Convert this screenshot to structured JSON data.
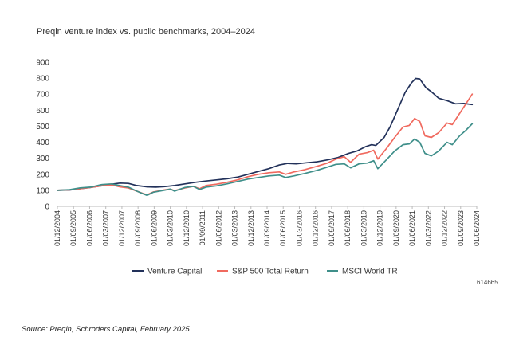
{
  "chart_data": {
    "type": "line",
    "title": "Preqin venture index vs. public benchmarks, 2004–2024",
    "xlabel": "",
    "ylabel": "",
    "ylim": [
      0,
      900
    ],
    "yticks": [
      0,
      100,
      200,
      300,
      400,
      500,
      600,
      700,
      800,
      900
    ],
    "grid": false,
    "legend_position": "bottom",
    "x_tick_labels": [
      "01/12/2004",
      "01/09/2005",
      "01/06/2006",
      "01/03/2007",
      "01/12/2007",
      "01/09/2008",
      "01/06/2009",
      "01/03/2010",
      "01/12/2010",
      "01/09/2011",
      "01/06/2012",
      "01/03/2013",
      "01/12/2013",
      "01/09/2014",
      "01/06/2015",
      "01/03/2016",
      "01/12/2016",
      "01/09/2017",
      "01/06/2018",
      "01/03/2019",
      "01/12/2019",
      "01/09/2020",
      "01/06/2021",
      "01/03/2022",
      "01/12/2022",
      "01/09/2023",
      "01/06/2024"
    ],
    "x_range": [
      2004.917,
      2024.917
    ],
    "series": [
      {
        "name": "Venture Capital",
        "color": "#22315a",
        "points": [
          [
            2004.92,
            100
          ],
          [
            2005.5,
            102
          ],
          [
            2006,
            110
          ],
          [
            2006.5,
            118
          ],
          [
            2007,
            128
          ],
          [
            2007.5,
            138
          ],
          [
            2007.9,
            145
          ],
          [
            2008.3,
            143
          ],
          [
            2008.7,
            130
          ],
          [
            2009.2,
            122
          ],
          [
            2009.6,
            120
          ],
          [
            2010,
            123
          ],
          [
            2010.5,
            130
          ],
          [
            2011,
            140
          ],
          [
            2011.5,
            150
          ],
          [
            2012,
            158
          ],
          [
            2012.5,
            165
          ],
          [
            2013,
            172
          ],
          [
            2013.5,
            182
          ],
          [
            2014,
            200
          ],
          [
            2014.5,
            218
          ],
          [
            2015,
            235
          ],
          [
            2015.5,
            258
          ],
          [
            2015.9,
            268
          ],
          [
            2016.3,
            265
          ],
          [
            2016.8,
            272
          ],
          [
            2017.3,
            278
          ],
          [
            2017.8,
            290
          ],
          [
            2018.3,
            305
          ],
          [
            2018.8,
            330
          ],
          [
            2019.2,
            345
          ],
          [
            2019.6,
            372
          ],
          [
            2019.9,
            385
          ],
          [
            2020.1,
            380
          ],
          [
            2020.5,
            430
          ],
          [
            2020.8,
            500
          ],
          [
            2021.2,
            620
          ],
          [
            2021.5,
            710
          ],
          [
            2021.8,
            770
          ],
          [
            2022.0,
            798
          ],
          [
            2022.2,
            795
          ],
          [
            2022.5,
            740
          ],
          [
            2022.8,
            710
          ],
          [
            2023.1,
            675
          ],
          [
            2023.5,
            660
          ],
          [
            2023.9,
            640
          ],
          [
            2024.3,
            642
          ],
          [
            2024.7,
            635
          ]
        ]
      },
      {
        "name": "S&P 500 Total Return",
        "color": "#f06a5f",
        "points": [
          [
            2004.92,
            100
          ],
          [
            2005.5,
            103
          ],
          [
            2006,
            110
          ],
          [
            2006.5,
            118
          ],
          [
            2007,
            128
          ],
          [
            2007.5,
            134
          ],
          [
            2007.9,
            122
          ],
          [
            2008.3,
            115
          ],
          [
            2008.7,
            95
          ],
          [
            2009.0,
            80
          ],
          [
            2009.2,
            72
          ],
          [
            2009.5,
            90
          ],
          [
            2010,
            102
          ],
          [
            2010.3,
            108
          ],
          [
            2010.5,
            98
          ],
          [
            2011,
            115
          ],
          [
            2011.4,
            125
          ],
          [
            2011.7,
            110
          ],
          [
            2012,
            130
          ],
          [
            2012.5,
            138
          ],
          [
            2013,
            150
          ],
          [
            2013.5,
            165
          ],
          [
            2014,
            185
          ],
          [
            2014.5,
            200
          ],
          [
            2015,
            210
          ],
          [
            2015.5,
            215
          ],
          [
            2015.8,
            200
          ],
          [
            2016.2,
            215
          ],
          [
            2016.7,
            228
          ],
          [
            2017.3,
            250
          ],
          [
            2017.8,
            270
          ],
          [
            2018.2,
            295
          ],
          [
            2018.6,
            310
          ],
          [
            2018.9,
            275
          ],
          [
            2019.3,
            325
          ],
          [
            2019.7,
            335
          ],
          [
            2020.0,
            350
          ],
          [
            2020.2,
            295
          ],
          [
            2020.6,
            360
          ],
          [
            2021.0,
            430
          ],
          [
            2021.4,
            495
          ],
          [
            2021.7,
            505
          ],
          [
            2021.95,
            548
          ],
          [
            2022.2,
            530
          ],
          [
            2022.45,
            440
          ],
          [
            2022.75,
            430
          ],
          [
            2023.1,
            460
          ],
          [
            2023.5,
            520
          ],
          [
            2023.75,
            510
          ],
          [
            2024.1,
            580
          ],
          [
            2024.4,
            640
          ],
          [
            2024.7,
            700
          ]
        ]
      },
      {
        "name": "MSCI World TR",
        "color": "#3f8f8a",
        "points": [
          [
            2004.92,
            100
          ],
          [
            2005.5,
            104
          ],
          [
            2006,
            115
          ],
          [
            2006.5,
            120
          ],
          [
            2007,
            135
          ],
          [
            2007.5,
            140
          ],
          [
            2007.9,
            130
          ],
          [
            2008.3,
            120
          ],
          [
            2008.7,
            95
          ],
          [
            2009.0,
            78
          ],
          [
            2009.2,
            68
          ],
          [
            2009.5,
            88
          ],
          [
            2010,
            100
          ],
          [
            2010.3,
            108
          ],
          [
            2010.5,
            95
          ],
          [
            2011,
            118
          ],
          [
            2011.4,
            125
          ],
          [
            2011.7,
            105
          ],
          [
            2012,
            120
          ],
          [
            2012.5,
            128
          ],
          [
            2013,
            140
          ],
          [
            2013.5,
            155
          ],
          [
            2014,
            170
          ],
          [
            2014.5,
            180
          ],
          [
            2015,
            190
          ],
          [
            2015.5,
            195
          ],
          [
            2015.8,
            180
          ],
          [
            2016.2,
            190
          ],
          [
            2016.7,
            205
          ],
          [
            2017.3,
            225
          ],
          [
            2017.8,
            245
          ],
          [
            2018.2,
            262
          ],
          [
            2018.6,
            265
          ],
          [
            2018.9,
            240
          ],
          [
            2019.3,
            265
          ],
          [
            2019.7,
            270
          ],
          [
            2020.0,
            285
          ],
          [
            2020.2,
            235
          ],
          [
            2020.6,
            290
          ],
          [
            2021.0,
            345
          ],
          [
            2021.4,
            385
          ],
          [
            2021.7,
            390
          ],
          [
            2021.95,
            420
          ],
          [
            2022.2,
            400
          ],
          [
            2022.45,
            330
          ],
          [
            2022.75,
            315
          ],
          [
            2023.1,
            345
          ],
          [
            2023.5,
            400
          ],
          [
            2023.75,
            385
          ],
          [
            2024.1,
            440
          ],
          [
            2024.4,
            475
          ],
          [
            2024.7,
            515
          ]
        ]
      }
    ]
  },
  "chart_id": "614665",
  "source": "Source: Preqin, Schroders Capital, February 2025."
}
